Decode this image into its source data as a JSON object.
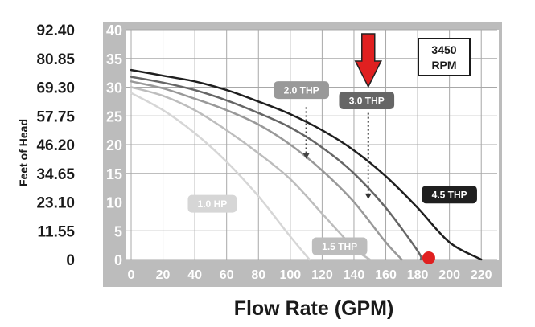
{
  "chart_data": {
    "type": "line",
    "xlabel": "Flow Rate (GPM)",
    "ylabel": "Feet of Head",
    "xlim": [
      0,
      230
    ],
    "ylim": [
      0,
      40
    ],
    "x_ticks": [
      "0",
      "20",
      "40",
      "60",
      "80",
      "100",
      "120",
      "140",
      "160",
      "180",
      "200",
      "220"
    ],
    "y_ticks_inner": [
      "0",
      "5",
      "10",
      "15",
      "20",
      "25",
      "30",
      "35",
      "40"
    ],
    "y_ticks_left": [
      "0",
      "11.55",
      "23.10",
      "34.65",
      "46.20",
      "57.75",
      "69.30",
      "80.85",
      "92.40"
    ],
    "grid": true,
    "speed_label_line1": "3450",
    "speed_label_line2": "RPM",
    "series": [
      {
        "name": "1.0 HP",
        "color": "#d6d6d6",
        "label_at": [
          51,
          9.7
        ],
        "points": [
          [
            0,
            29
          ],
          [
            20,
            26
          ],
          [
            40,
            22
          ],
          [
            60,
            17
          ],
          [
            80,
            11
          ],
          [
            100,
            4
          ],
          [
            112,
            0
          ]
        ]
      },
      {
        "name": "1.5 THP",
        "color": "#bdbdbd",
        "label_at": [
          131,
          2.3
        ],
        "points": [
          [
            0,
            30
          ],
          [
            20,
            28.5
          ],
          [
            40,
            26
          ],
          [
            60,
            22.5
          ],
          [
            80,
            18.5
          ],
          [
            100,
            14
          ],
          [
            120,
            8
          ],
          [
            140,
            2
          ],
          [
            150,
            0
          ]
        ]
      },
      {
        "name": "2.0 THP",
        "color": "#999999",
        "label_at": [
          107,
          29.5
        ],
        "points": [
          [
            0,
            31
          ],
          [
            20,
            29.8
          ],
          [
            40,
            28
          ],
          [
            60,
            26
          ],
          [
            80,
            23.5
          ],
          [
            100,
            20
          ],
          [
            120,
            15.5
          ],
          [
            140,
            10
          ],
          [
            160,
            3
          ],
          [
            170,
            0
          ]
        ]
      },
      {
        "name": "3.0 THP",
        "color": "#666666",
        "label_at": [
          148,
          27.7
        ],
        "points": [
          [
            0,
            31.8
          ],
          [
            20,
            30.8
          ],
          [
            40,
            29.5
          ],
          [
            60,
            27.7
          ],
          [
            80,
            25.5
          ],
          [
            100,
            23
          ],
          [
            120,
            19.5
          ],
          [
            140,
            15
          ],
          [
            160,
            9
          ],
          [
            180,
            1.5
          ],
          [
            182,
            0
          ]
        ]
      },
      {
        "name": "4.5 THP",
        "color": "#1f1f1f",
        "label_at": [
          200,
          11.3
        ],
        "points": [
          [
            0,
            33
          ],
          [
            20,
            32
          ],
          [
            40,
            31
          ],
          [
            60,
            29.5
          ],
          [
            80,
            27.5
          ],
          [
            100,
            25.3
          ],
          [
            120,
            22.5
          ],
          [
            140,
            19
          ],
          [
            160,
            14.5
          ],
          [
            180,
            9
          ],
          [
            200,
            3
          ],
          [
            220,
            0
          ]
        ]
      }
    ],
    "annotations": [
      {
        "type": "dotted-arrow",
        "from": [
          110,
          26.5
        ],
        "to": [
          110,
          17.5
        ],
        "color": "#444444"
      },
      {
        "type": "dotted-arrow",
        "from": [
          149,
          25.5
        ],
        "to": [
          149,
          10.5
        ],
        "color": "#333333"
      },
      {
        "type": "red-arrow",
        "at_x": 149,
        "color": "#e02020"
      },
      {
        "type": "red-dot",
        "x": 187,
        "y": 0,
        "color": "#e02020"
      }
    ]
  }
}
